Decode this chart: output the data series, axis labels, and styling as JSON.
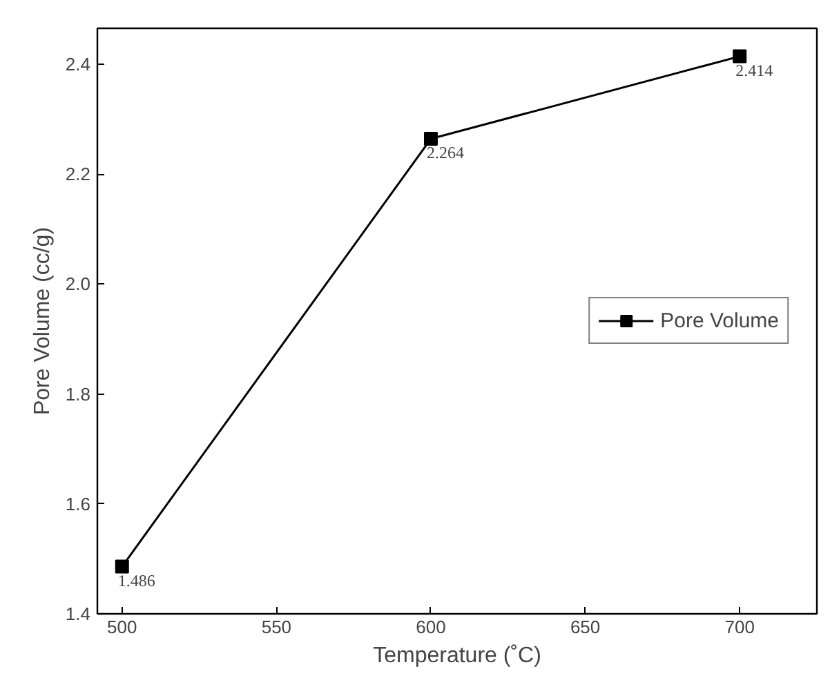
{
  "chart_data": {
    "type": "line",
    "xlabel": "Temperature (˚C)",
    "ylabel": "Pore Volume (cc/g)",
    "x": [
      500,
      600,
      700
    ],
    "series": [
      {
        "name": "Pore Volume",
        "color": "#000000",
        "values": [
          1.486,
          2.264,
          2.414
        ]
      }
    ],
    "xlim": [
      492,
      725
    ],
    "ylim": [
      1.4,
      2.465
    ],
    "xticks": [
      500,
      550,
      600,
      650,
      700
    ],
    "yticks": [
      {
        "value": 1.4,
        "label": "1.4"
      },
      {
        "value": 1.6,
        "label": "1.6"
      },
      {
        "value": 1.8,
        "label": "1.8"
      },
      {
        "value": 2.0,
        "label": "2.0"
      },
      {
        "value": 2.2,
        "label": "2.2"
      },
      {
        "value": 2.4,
        "label": "2.4"
      }
    ],
    "data_labels": true,
    "marker": "square",
    "line_style": "solid",
    "legend": "center right",
    "grid": false
  }
}
